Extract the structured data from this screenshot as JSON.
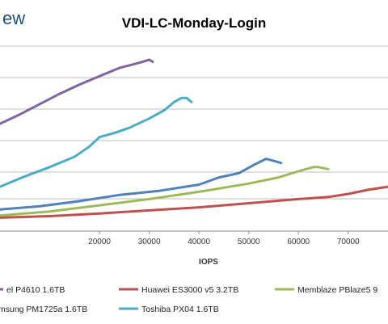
{
  "brand_text": "ew",
  "chart_data": {
    "type": "line",
    "title": "VDI-LC-Monday-Login",
    "xlabel": "IOPS",
    "ylabel": "",
    "xlim": [
      0,
      78000
    ],
    "ylim": [
      0,
      1.8
    ],
    "x_ticks": [
      20000,
      30000,
      40000,
      50000,
      60000,
      70000
    ],
    "x_tick_labels": [
      "20000",
      "30000",
      "40000",
      "50000",
      "60000",
      "70000"
    ],
    "grid": "horizontal",
    "legend_position": "bottom",
    "series": [
      {
        "name": "el P4610 1.6TB",
        "color": "#8064a2",
        "x": [
          0,
          4000,
          8000,
          12000,
          16000,
          20000,
          24000,
          28000,
          30000,
          30700
        ],
        "y": [
          1.04,
          1.13,
          1.23,
          1.33,
          1.42,
          1.5,
          1.58,
          1.63,
          1.66,
          1.64
        ]
      },
      {
        "name": "Huawei ES3000 v5 3.2TB",
        "color": "#c0504d",
        "x": [
          0,
          10000,
          20000,
          30000,
          40000,
          50000,
          60000,
          66000,
          70000,
          74000,
          78000
        ],
        "y": [
          0.13,
          0.145,
          0.17,
          0.2,
          0.23,
          0.27,
          0.31,
          0.33,
          0.36,
          0.4,
          0.43
        ]
      },
      {
        "name": "Memblaze PBlaze5 9",
        "color": "#9bbb59",
        "x": [
          0,
          10000,
          20000,
          30000,
          40000,
          50000,
          56000,
          60000,
          63000,
          64000,
          66000
        ],
        "y": [
          0.15,
          0.19,
          0.25,
          0.31,
          0.38,
          0.46,
          0.52,
          0.58,
          0.62,
          0.62,
          0.6
        ]
      },
      {
        "name": "msung PM1725a 1.6TB",
        "color": "#4f81bd",
        "x": [
          0,
          8000,
          16000,
          24000,
          32000,
          40000,
          44000,
          48000,
          51000,
          53500,
          55000,
          56500
        ],
        "y": [
          0.21,
          0.24,
          0.29,
          0.35,
          0.39,
          0.45,
          0.52,
          0.56,
          0.64,
          0.7,
          0.68,
          0.66
        ]
      },
      {
        "name": "Toshiba PX04 1.6TB",
        "color": "#4bacc6",
        "x": [
          0,
          5000,
          10000,
          15000,
          18000,
          20000,
          23000,
          26000,
          30000,
          33000,
          35000,
          36500,
          37500,
          38500
        ],
        "y": [
          0.43,
          0.53,
          0.62,
          0.72,
          0.82,
          0.91,
          0.95,
          1.0,
          1.09,
          1.17,
          1.25,
          1.29,
          1.29,
          1.25
        ]
      }
    ]
  }
}
